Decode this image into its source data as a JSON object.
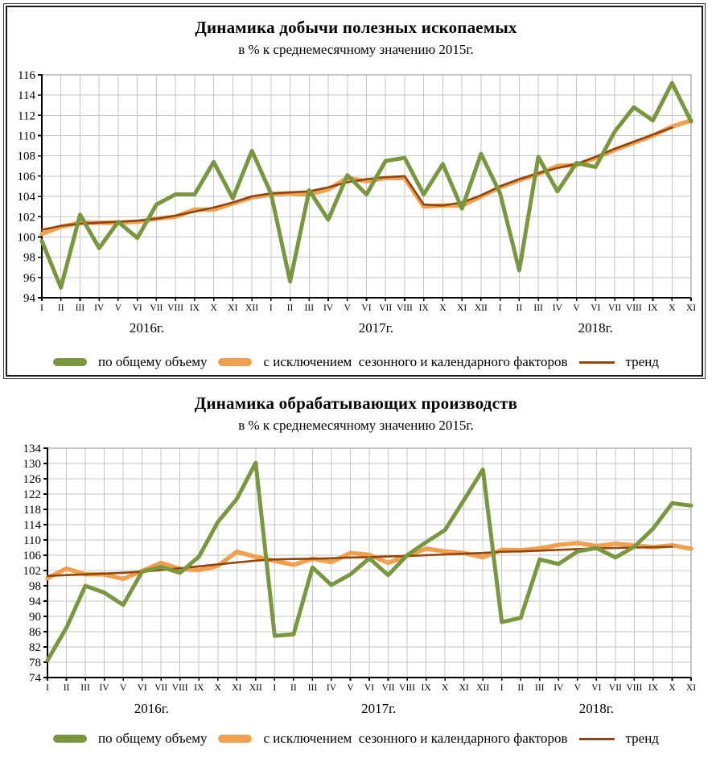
{
  "colors": {
    "total_volume": "#78973E",
    "seasonally_adjusted": "#F0A04F",
    "trend": "#91450B",
    "gridline": "#C6C6C6",
    "plot_border": "#8C8C8C",
    "axis": "#000000"
  },
  "chart_data": [
    {
      "type": "line",
      "title": "Динамика добычи полезных ископаемых",
      "subtitle": "в % к среднемесячному значению 2015г.",
      "ylim": [
        94,
        116
      ],
      "y_tick_step": 2,
      "y_ticks": [
        94,
        96,
        98,
        100,
        102,
        104,
        106,
        108,
        110,
        112,
        114,
        116
      ],
      "grid": true,
      "legend_position": "bottom",
      "categories": [
        "I",
        "II",
        "III",
        "IV",
        "V",
        "VI",
        "VII",
        "VIII",
        "IX",
        "X",
        "XI",
        "XII",
        "I",
        "II",
        "III",
        "IV",
        "V",
        "VI",
        "VII",
        "VIII",
        "IX",
        "X",
        "XI",
        "XII",
        "I",
        "II",
        "III",
        "IV",
        "V",
        "VI",
        "VII",
        "VIII",
        "IX",
        "X",
        "XI"
      ],
      "year_groups": [
        {
          "label": "2016г.",
          "from": 0,
          "to": 11
        },
        {
          "label": "2017г.",
          "from": 12,
          "to": 23
        },
        {
          "label": "2018г.",
          "from": 24,
          "to": 34
        }
      ],
      "legend": [
        "по общему объему",
        "с исключением  сезонного и календарного факторов",
        "тренд"
      ],
      "series": [
        {
          "name": "по общему объему",
          "values": [
            99.6,
            95.0,
            102.2,
            98.9,
            101.5,
            99.9,
            103.2,
            104.2,
            104.2,
            107.4,
            103.8,
            108.5,
            104.3,
            95.6,
            104.6,
            101.7,
            106.1,
            104.2,
            107.5,
            107.8,
            104.2,
            107.2,
            102.8,
            108.2,
            104.3,
            96.7,
            107.9,
            104.5,
            107.3,
            106.9,
            110.4,
            112.8,
            111.5,
            115.2,
            111.4
          ]
        },
        {
          "name": "с исключением сезонного и календарного факторов",
          "values": [
            100.3,
            101.0,
            101.4,
            101.4,
            101.4,
            101.5,
            101.8,
            102.0,
            102.7,
            102.7,
            103.3,
            103.9,
            104.2,
            104.3,
            104.2,
            104.7,
            105.8,
            105.5,
            105.8,
            105.8,
            103.0,
            103.1,
            103.1,
            104.0,
            104.9,
            105.6,
            106.2,
            107.0,
            107.1,
            107.8,
            108.6,
            109.3,
            110.0,
            110.9,
            111.5
          ]
        },
        {
          "name": "тренд",
          "values": [
            100.7,
            101.1,
            101.3,
            101.4,
            101.5,
            101.6,
            101.8,
            102.1,
            102.5,
            102.9,
            103.4,
            104.0,
            104.3,
            104.4,
            104.5,
            104.9,
            105.4,
            105.7,
            105.9,
            106.0,
            103.2,
            103.1,
            103.4,
            104.1,
            105.0,
            105.7,
            106.3,
            106.8,
            107.2,
            107.9,
            108.7,
            109.4,
            110.1,
            110.8,
            null
          ]
        }
      ]
    },
    {
      "type": "line",
      "title": "Динамика обрабатывающих производств",
      "subtitle": "в % к среднемесячному значению 2015г.",
      "ylim": [
        74,
        134
      ],
      "y_tick_step": 4,
      "y_ticks": [
        74,
        78,
        82,
        86,
        90,
        94,
        98,
        102,
        106,
        110,
        114,
        118,
        122,
        126,
        130,
        134
      ],
      "grid": true,
      "legend_position": "bottom",
      "categories": [
        "I",
        "II",
        "III",
        "IV",
        "V",
        "VI",
        "VII",
        "VIII",
        "IX",
        "X",
        "XI",
        "XII",
        "I",
        "II",
        "III",
        "IV",
        "V",
        "VI",
        "VII",
        "VIII",
        "IX",
        "X",
        "XI",
        "XII",
        "I",
        "II",
        "III",
        "IV",
        "V",
        "VI",
        "VII",
        "VIII",
        "IX",
        "X",
        "XI"
      ],
      "year_groups": [
        {
          "label": "2016г.",
          "from": 0,
          "to": 11
        },
        {
          "label": "2017г.",
          "from": 12,
          "to": 23
        },
        {
          "label": "2018г.",
          "from": 24,
          "to": 34
        }
      ],
      "legend": [
        "по общему объему",
        "с исключением  сезонного и календарного факторов",
        "тренд"
      ],
      "series": [
        {
          "name": "по общему объему",
          "values": [
            78.5,
            87.0,
            98.0,
            96.2,
            93.0,
            101.7,
            102.9,
            101.4,
            105.6,
            114.7,
            120.7,
            130.2,
            84.9,
            85.3,
            102.8,
            98.2,
            101.0,
            105.2,
            100.8,
            106.0,
            109.4,
            112.6,
            120.4,
            128.4,
            88.5,
            89.6,
            104.9,
            103.7,
            107.0,
            107.9,
            105.4,
            108.2,
            113.0,
            119.6,
            119.0
          ]
        },
        {
          "name": "с исключением сезонного и календарного факторов",
          "values": [
            100.0,
            102.5,
            101.0,
            101.0,
            99.8,
            101.9,
            104.0,
            102.4,
            102.1,
            103.2,
            106.9,
            105.6,
            104.5,
            103.5,
            105.1,
            104.2,
            106.6,
            106.1,
            104.0,
            105.9,
            107.7,
            107.0,
            106.6,
            105.5,
            107.4,
            107.3,
            107.8,
            108.7,
            109.2,
            108.4,
            109.0,
            108.6,
            108.1,
            108.6,
            107.7
          ]
        },
        {
          "name": "тренд",
          "values": [
            100.6,
            100.8,
            101.0,
            101.2,
            101.4,
            101.7,
            102.1,
            102.6,
            103.1,
            103.6,
            104.1,
            104.6,
            104.9,
            105.0,
            105.1,
            105.2,
            105.4,
            105.5,
            105.7,
            105.8,
            106.0,
            106.2,
            106.4,
            106.6,
            106.9,
            107.0,
            107.2,
            107.4,
            107.6,
            107.8,
            107.9,
            108.0,
            108.1,
            108.2,
            null
          ]
        }
      ]
    }
  ]
}
